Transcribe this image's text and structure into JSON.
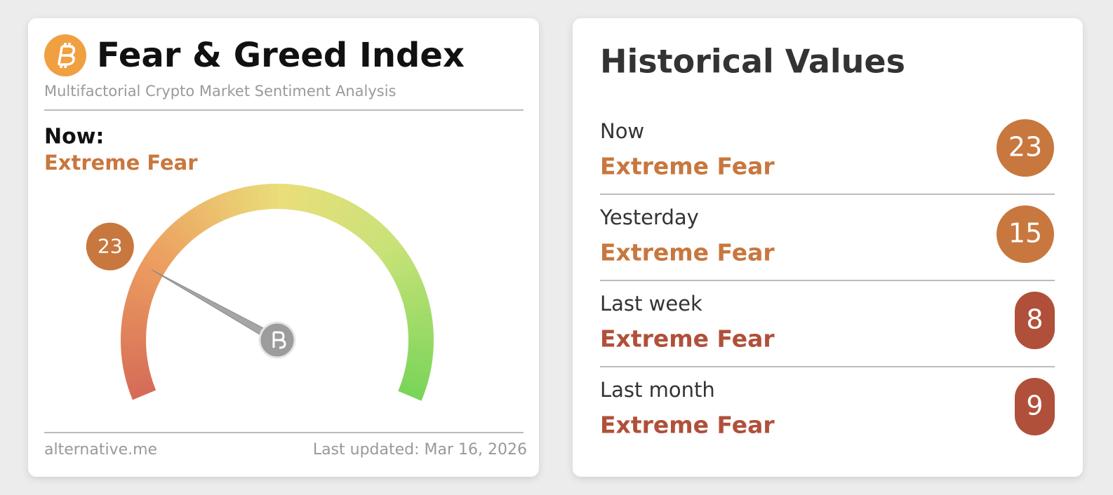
{
  "fear_greed": {
    "title": "Fear & Greed Index",
    "subtitle": "Multifactorial Crypto Market Sentiment Analysis",
    "now_label": "Now:",
    "classification": "Extreme Fear",
    "value": 23,
    "range": [
      0,
      100
    ],
    "color": "#c8773e",
    "source": "alternative.me",
    "last_updated": "Last updated: Mar 16, 2026"
  },
  "historical": {
    "title": "Historical Values",
    "rows": [
      {
        "label": "Now",
        "classification": "Extreme Fear",
        "value": 23,
        "color": "#c8773e"
      },
      {
        "label": "Yesterday",
        "classification": "Extreme Fear",
        "value": 15,
        "color": "#c8773e"
      },
      {
        "label": "Last week",
        "classification": "Extreme Fear",
        "value": 8,
        "color": "#b0503a"
      },
      {
        "label": "Last month",
        "classification": "Extreme Fear",
        "value": 9,
        "color": "#b0503a"
      }
    ]
  }
}
